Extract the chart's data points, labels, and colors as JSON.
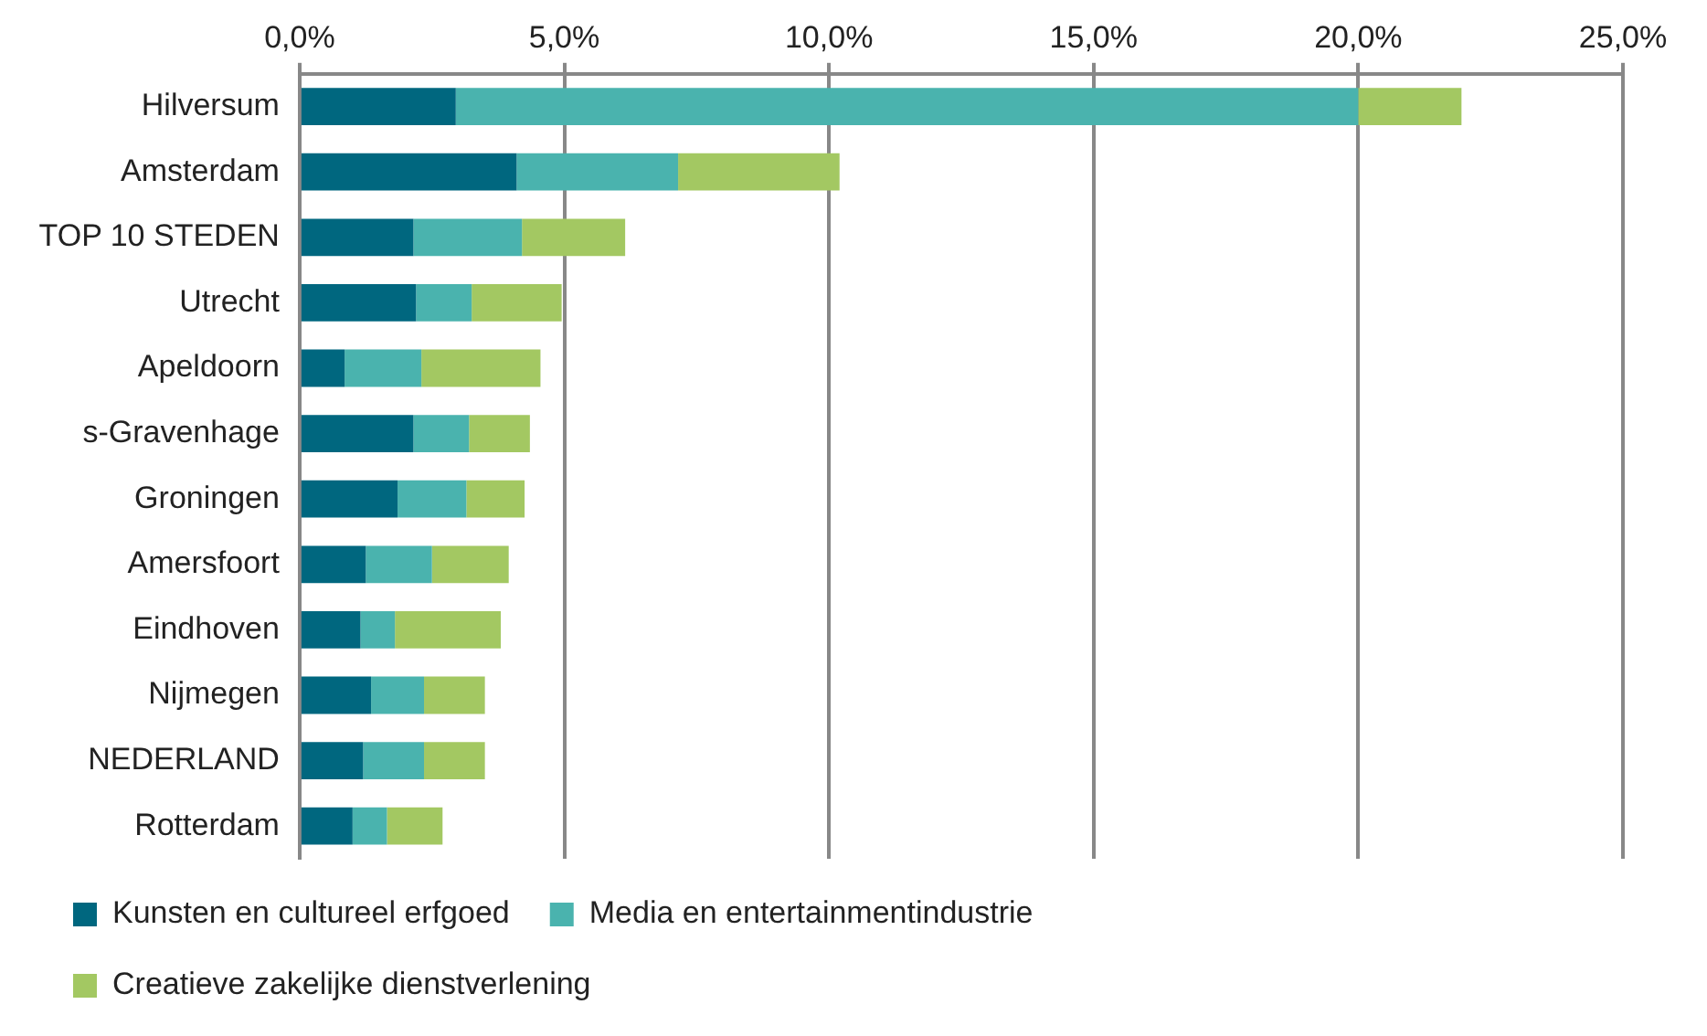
{
  "chart_data": {
    "type": "bar",
    "orientation": "horizontal",
    "stacked": true,
    "categories": [
      "Hilversum",
      "Amsterdam",
      "TOP 10 STEDEN",
      "Utrecht",
      "Apeldoorn",
      "s-Gravenhage",
      "Groningen",
      "Amersfoort",
      "Eindhoven",
      "Nijmegen",
      "NEDERLAND",
      "Rotterdam"
    ],
    "series": [
      {
        "name": "Kunsten en cultureel erfgoed",
        "color": "#00677f",
        "values": [
          2.95,
          4.1,
          2.15,
          2.2,
          0.85,
          2.15,
          1.85,
          1.25,
          1.15,
          1.35,
          1.2,
          1.0
        ]
      },
      {
        "name": "Media en entertainmentindustrie",
        "color": "#4ab3ae",
        "values": [
          17.05,
          3.05,
          2.05,
          1.05,
          1.45,
          1.05,
          1.3,
          1.25,
          0.65,
          1.0,
          1.15,
          0.65
        ]
      },
      {
        "name": "Creatieve zakelijke dienstverlening",
        "color": "#a3c862",
        "values": [
          1.95,
          3.05,
          1.95,
          1.7,
          2.25,
          1.15,
          1.1,
          1.45,
          2.0,
          1.15,
          1.15,
          1.05
        ]
      }
    ],
    "xlim": [
      0,
      25
    ],
    "xticks": [
      {
        "value": 0,
        "label": "0,0%"
      },
      {
        "value": 5,
        "label": "5,0%"
      },
      {
        "value": 10,
        "label": "10,0%"
      },
      {
        "value": 15,
        "label": "15,0%"
      },
      {
        "value": 20,
        "label": "20,0%"
      },
      {
        "value": 25,
        "label": "25,0%"
      }
    ],
    "grid": "x",
    "legend": "bottom"
  }
}
